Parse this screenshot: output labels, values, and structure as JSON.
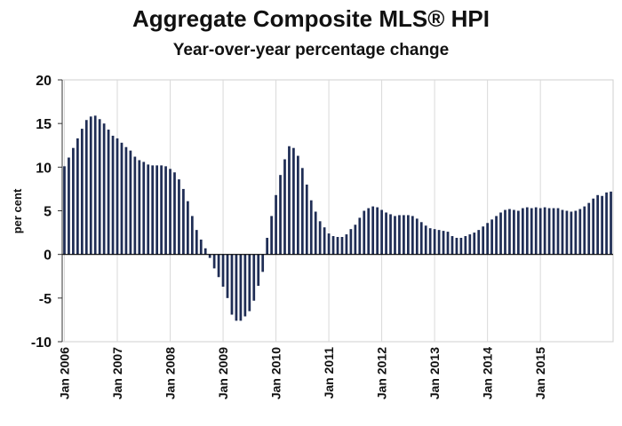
{
  "chart_data": {
    "type": "bar",
    "title": "Aggregate Composite MLS® HPI",
    "subtitle": "Year-over-year percentage change",
    "ylabel": "per cent",
    "xlabel": "",
    "ylim": [
      -10,
      20
    ],
    "yticks": [
      "20",
      "15",
      "10",
      "5",
      "0",
      "-5",
      "-10"
    ],
    "ytick_values": [
      20,
      15,
      10,
      5,
      0,
      -5,
      -10
    ],
    "xtick_labels": [
      "Jan 2006",
      "Jan 2007",
      "Jan 2008",
      "Jan 2009",
      "Jan 2010",
      "Jan 2011",
      "Jan 2012",
      "Jan 2013",
      "Jan 2014",
      "Jan 2015"
    ],
    "grid": "vertical",
    "bar_color": "#1f2d55",
    "start_period": "Jan 2006",
    "values": [
      10.1,
      11.1,
      12.2,
      13.3,
      14.4,
      15.4,
      15.8,
      15.9,
      15.5,
      15.0,
      14.3,
      13.6,
      13.3,
      12.8,
      12.3,
      11.9,
      11.2,
      10.8,
      10.6,
      10.3,
      10.2,
      10.2,
      10.2,
      10.1,
      9.8,
      9.4,
      8.6,
      7.5,
      6.1,
      4.4,
      2.8,
      1.7,
      0.7,
      -0.4,
      -1.6,
      -2.6,
      -3.7,
      -5.0,
      -6.9,
      -7.6,
      -7.6,
      -7.1,
      -6.5,
      -5.3,
      -3.6,
      -2.0,
      1.9,
      4.4,
      6.8,
      9.1,
      10.9,
      12.4,
      12.2,
      11.3,
      9.9,
      8.0,
      6.2,
      4.9,
      3.8,
      3.1,
      2.4,
      2.1,
      2.0,
      2.0,
      2.3,
      2.9,
      3.4,
      4.2,
      5.0,
      5.3,
      5.5,
      5.4,
      5.1,
      4.8,
      4.6,
      4.4,
      4.5,
      4.5,
      4.5,
      4.4,
      4.1,
      3.7,
      3.3,
      3.0,
      2.9,
      2.8,
      2.7,
      2.6,
      2.1,
      1.9,
      1.9,
      2.1,
      2.3,
      2.5,
      2.8,
      3.2,
      3.6,
      4.0,
      4.4,
      4.8,
      5.1,
      5.2,
      5.1,
      5.0,
      5.3,
      5.4,
      5.3,
      5.4,
      5.3,
      5.4,
      5.3,
      5.3,
      5.3,
      5.1,
      5.0,
      4.9,
      5.0,
      5.2,
      5.5,
      5.9,
      6.4,
      6.8,
      6.7,
      7.1,
      7.2
    ]
  }
}
